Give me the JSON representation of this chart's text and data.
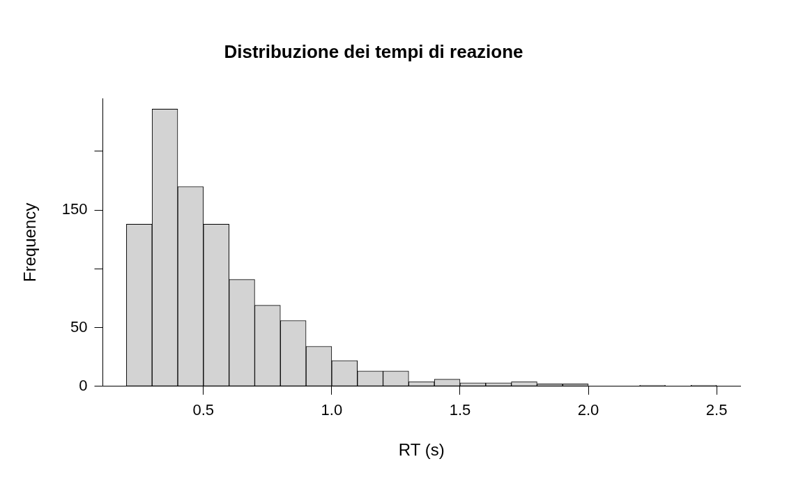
{
  "chart_data": {
    "type": "histogram",
    "title": "Distribuzione dei tempi di reazione",
    "xlabel": "RT (s)",
    "ylabel": "Frequency",
    "bins": [
      0.2,
      0.3,
      0.4,
      0.5,
      0.6,
      0.7,
      0.8,
      0.9,
      1.0,
      1.1,
      1.2,
      1.3,
      1.4,
      1.5,
      1.6,
      1.7,
      1.8,
      1.9,
      2.0,
      2.1,
      2.2,
      2.3,
      2.4,
      2.5
    ],
    "values": [
      138,
      236,
      170,
      138,
      91,
      69,
      56,
      34,
      22,
      13,
      13,
      4,
      6,
      3,
      3,
      4,
      2,
      2,
      0,
      0,
      1,
      0,
      1
    ],
    "color": "#d3d3d3",
    "xlim": [
      0.108,
      2.592
    ],
    "xticks": [
      0.5,
      {
        "value": 1,
        "label": "1.0"
      },
      1.5,
      {
        "value": 2,
        "label": "2.0"
      },
      2.5
    ],
    "ylim": [
      0,
      245
    ],
    "yticks": [
      0,
      50,
      {
        "value": 100,
        "label": null
      },
      150,
      {
        "value": 200,
        "label": null
      }
    ],
    "grid": false
  }
}
